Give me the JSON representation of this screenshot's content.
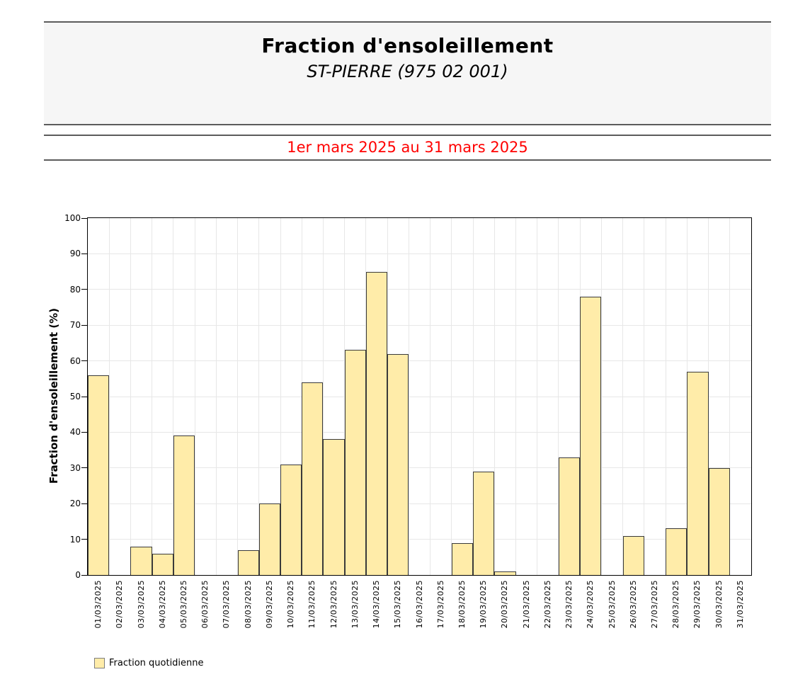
{
  "header": {
    "title": "Fraction d'ensoleillement",
    "subtitle": "ST-PIERRE (975 02 001)"
  },
  "period": {
    "label": "1er mars 2025 au 31 mars 2025",
    "color": "#ff0000"
  },
  "chart_data": {
    "type": "bar",
    "title": "Fraction d'ensoleillement",
    "categories": [
      "01/03/2025",
      "02/03/2025",
      "03/03/2025",
      "04/03/2025",
      "05/03/2025",
      "06/03/2025",
      "07/03/2025",
      "08/03/2025",
      "09/03/2025",
      "10/03/2025",
      "11/03/2025",
      "12/03/2025",
      "13/03/2025",
      "14/03/2025",
      "15/03/2025",
      "16/03/2025",
      "17/03/2025",
      "18/03/2025",
      "19/03/2025",
      "20/03/2025",
      "21/03/2025",
      "22/03/2025",
      "23/03/2025",
      "24/03/2025",
      "25/03/2025",
      "26/03/2025",
      "27/03/2025",
      "28/03/2025",
      "29/03/2025",
      "30/03/2025",
      "31/03/2025"
    ],
    "values": [
      56,
      0,
      8,
      6,
      39,
      0,
      0,
      7,
      20,
      31,
      54,
      38,
      63,
      85,
      62,
      0,
      0,
      9,
      29,
      1,
      0,
      0,
      33,
      78,
      0,
      11,
      0,
      13,
      57,
      30,
      0
    ],
    "xlabel": "",
    "ylabel": "Fraction d'ensoleillement (%)",
    "ylim": [
      0,
      100
    ],
    "ytick_step": 10,
    "grid": true,
    "bar_color": "#ffeca9",
    "bar_border_color": "#3a3a3a",
    "legend": {
      "label": "Fraction quotidienne",
      "position": "bottom-left"
    }
  }
}
